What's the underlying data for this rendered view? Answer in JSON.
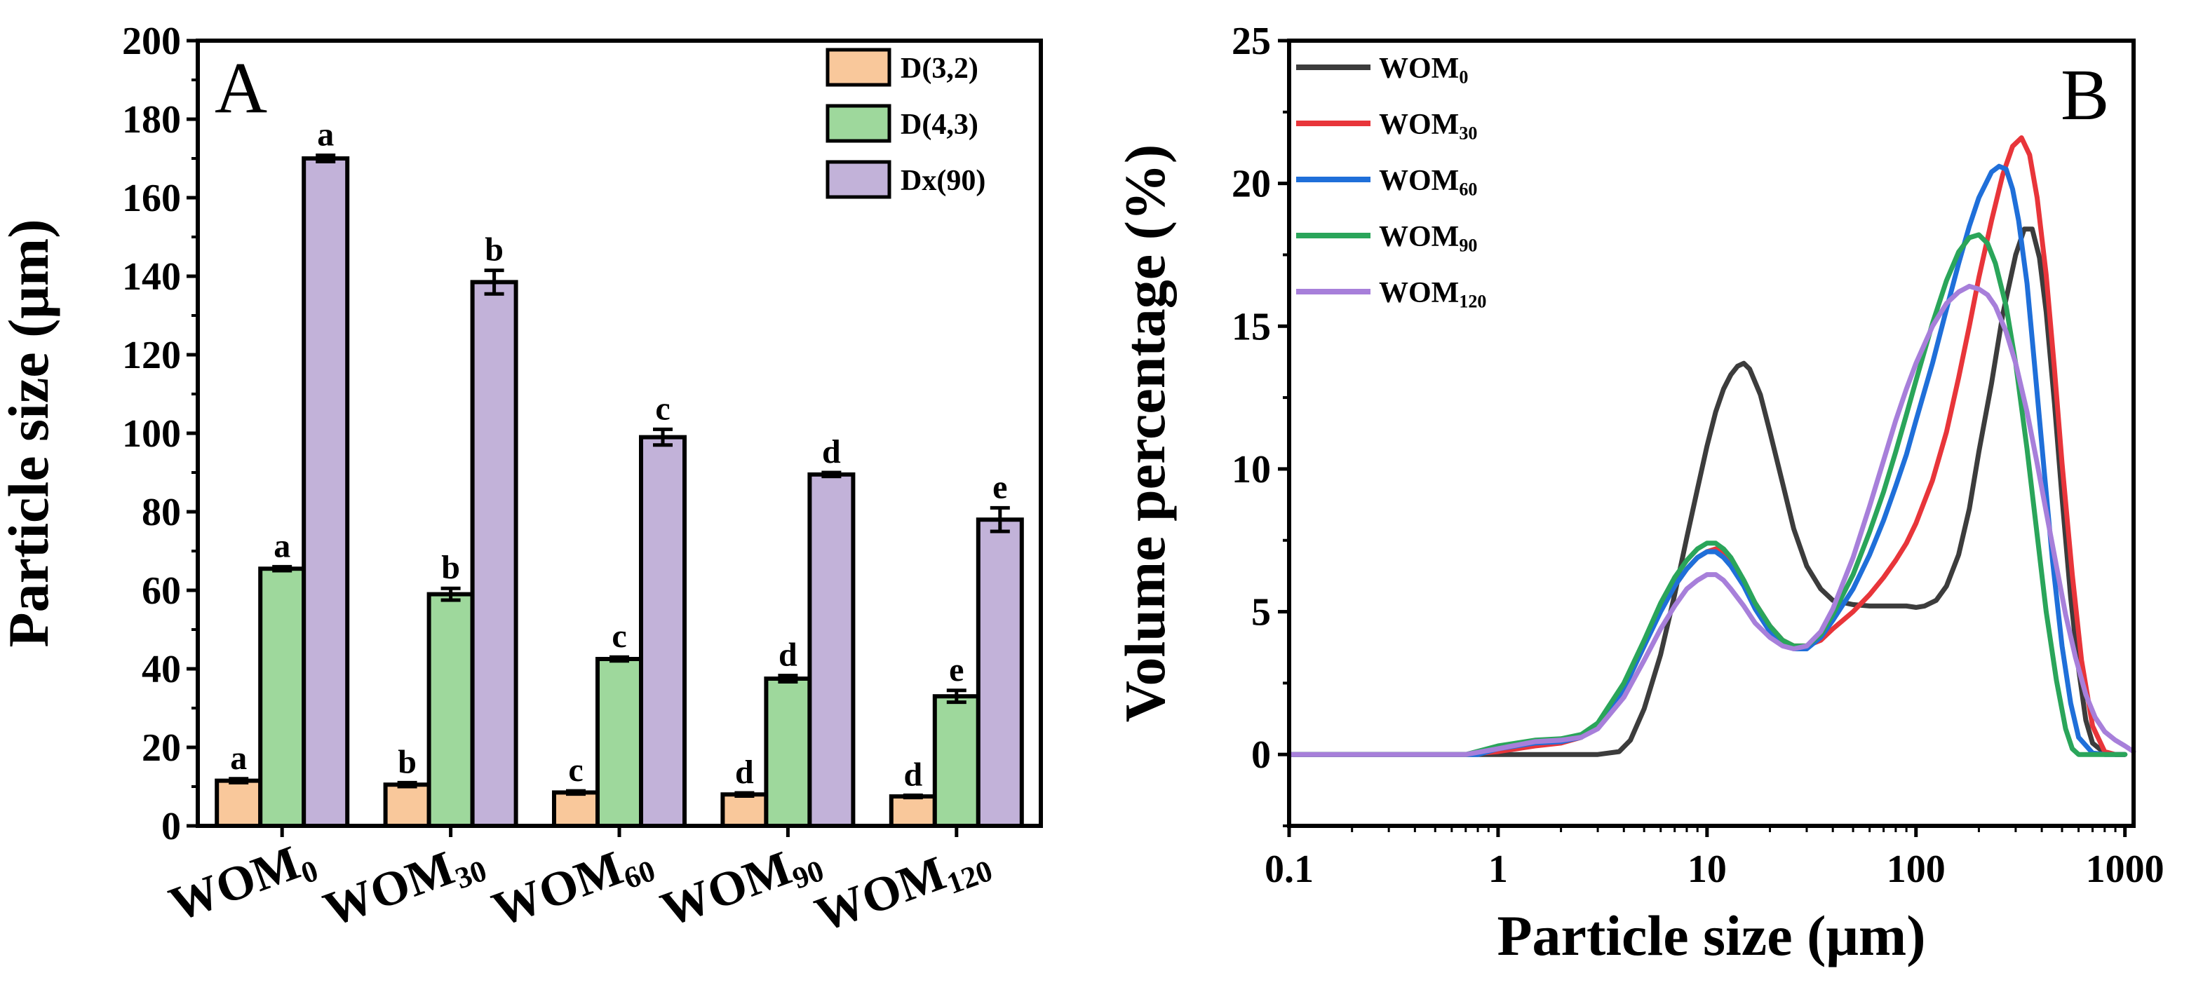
{
  "chart_data": [
    {
      "type": "bar",
      "panel_label": "A",
      "ylabel": "Particle size (μm)",
      "xlabel": "",
      "ylim": [
        0,
        200
      ],
      "yticks": [
        0,
        20,
        40,
        60,
        80,
        100,
        120,
        140,
        160,
        180,
        200
      ],
      "legend_position": "top-right",
      "categories": [
        {
          "base": "WOM",
          "sub": "0"
        },
        {
          "base": "WOM",
          "sub": "30"
        },
        {
          "base": "WOM",
          "sub": "60"
        },
        {
          "base": "WOM",
          "sub": "90"
        },
        {
          "base": "WOM",
          "sub": "120"
        }
      ],
      "series": [
        {
          "name": "D(3,2)",
          "color": "#F9C89B",
          "values": [
            11.5,
            10.5,
            8.5,
            8.0,
            7.5
          ],
          "errors": [
            0.5,
            0.5,
            0.4,
            0.4,
            0.3
          ],
          "letters": [
            "a",
            "b",
            "c",
            "d",
            "d"
          ]
        },
        {
          "name": "D(4,3)",
          "color": "#9ED89C",
          "values": [
            65.5,
            59.0,
            42.5,
            37.5,
            33.0
          ],
          "errors": [
            0.5,
            1.5,
            0.5,
            0.8,
            1.5
          ],
          "letters": [
            "a",
            "b",
            "c",
            "d",
            "e"
          ]
        },
        {
          "name": "Dx(90)",
          "color": "#C2B2D9",
          "values": [
            170.0,
            138.5,
            99.0,
            89.5,
            78.0
          ],
          "errors": [
            0.8,
            3.0,
            2.0,
            0.5,
            3.0
          ],
          "letters": [
            "a",
            "b",
            "c",
            "d",
            "e"
          ]
        }
      ]
    },
    {
      "type": "line",
      "panel_label": "B",
      "xlabel": "Particle size (μm)",
      "ylabel": "Volume percentage (%)",
      "xscale": "log",
      "xlim": [
        0.1,
        1100
      ],
      "ylim": [
        -2.5,
        25
      ],
      "xticks": [
        {
          "value": 0.1,
          "label": "0.1"
        },
        {
          "value": 1,
          "label": "1"
        },
        {
          "value": 10,
          "label": "10"
        },
        {
          "value": 100,
          "label": "100"
        },
        {
          "value": 1000,
          "label": "1000"
        }
      ],
      "yticks": [
        0,
        5,
        10,
        15,
        20,
        25
      ],
      "legend_position": "top-left",
      "series": [
        {
          "base": "WOM",
          "sub": "0",
          "color": "#3C3C3C",
          "x": [
            0.1,
            1,
            3,
            3.8,
            4.3,
            5,
            6,
            7,
            8,
            9,
            10,
            11,
            12,
            13,
            14,
            15,
            16,
            18,
            20,
            23,
            26,
            30,
            35,
            40,
            50,
            60,
            70,
            80,
            90,
            100,
            110,
            125,
            140,
            160,
            180,
            200,
            230,
            260,
            300,
            330,
            360,
            390,
            420,
            460,
            500,
            550,
            600,
            650,
            700,
            800,
            900,
            1000
          ],
          "y": [
            0,
            0,
            0,
            0.1,
            0.5,
            1.6,
            3.5,
            5.6,
            7.6,
            9.3,
            10.8,
            12.0,
            12.8,
            13.3,
            13.6,
            13.7,
            13.5,
            12.6,
            11.3,
            9.5,
            7.9,
            6.6,
            5.8,
            5.4,
            5.25,
            5.2,
            5.2,
            5.2,
            5.2,
            5.15,
            5.2,
            5.4,
            5.9,
            7.0,
            8.6,
            10.6,
            13.0,
            15.4,
            17.5,
            18.4,
            18.4,
            17.4,
            15.5,
            12.3,
            9.0,
            5.5,
            3.0,
            1.2,
            0.4,
            0.05,
            0,
            0
          ]
        },
        {
          "base": "WOM",
          "sub": "30",
          "color": "#E8353A",
          "x": [
            0.1,
            0.7,
            1,
            1.5,
            2,
            2.5,
            3,
            4,
            5,
            6,
            7,
            8,
            9,
            10,
            11,
            12,
            13,
            15,
            17,
            20,
            23,
            26,
            30,
            35,
            40,
            50,
            60,
            70,
            80,
            90,
            100,
            120,
            140,
            160,
            180,
            200,
            230,
            260,
            290,
            320,
            350,
            380,
            420,
            460,
            500,
            560,
            620,
            700,
            800,
            900,
            1000
          ],
          "y": [
            0,
            0,
            0.1,
            0.3,
            0.4,
            0.6,
            1.0,
            2.3,
            3.8,
            5.1,
            5.9,
            6.5,
            6.9,
            7.1,
            7.2,
            7.0,
            6.7,
            6.0,
            5.3,
            4.5,
            4.0,
            3.8,
            3.8,
            4.0,
            4.4,
            5.0,
            5.6,
            6.2,
            6.8,
            7.4,
            8.1,
            9.6,
            11.3,
            13.2,
            15.0,
            16.7,
            18.7,
            20.3,
            21.3,
            21.6,
            21.0,
            19.5,
            16.8,
            13.5,
            10.2,
            6.3,
            3.3,
            1.0,
            0.1,
            0,
            0
          ]
        },
        {
          "base": "WOM",
          "sub": "60",
          "color": "#1F6FD9",
          "x": [
            0.1,
            0.8,
            1,
            1.5,
            2,
            2.5,
            3,
            4,
            5,
            6,
            7,
            8,
            9,
            10,
            11,
            12,
            13,
            15,
            17,
            20,
            23,
            26,
            30,
            35,
            40,
            50,
            60,
            70,
            80,
            90,
            100,
            120,
            140,
            160,
            180,
            200,
            230,
            250,
            270,
            290,
            310,
            340,
            370,
            410,
            450,
            500,
            550,
            600,
            700,
            800,
            1000
          ],
          "y": [
            0,
            0,
            0.2,
            0.4,
            0.45,
            0.6,
            1.0,
            2.3,
            3.8,
            5.0,
            5.9,
            6.5,
            6.9,
            7.1,
            7.1,
            6.9,
            6.6,
            5.9,
            5.1,
            4.3,
            3.9,
            3.7,
            3.7,
            4.1,
            4.7,
            5.8,
            7.0,
            8.2,
            9.4,
            10.5,
            11.7,
            13.7,
            15.6,
            17.2,
            18.5,
            19.5,
            20.4,
            20.6,
            20.5,
            19.8,
            18.7,
            16.5,
            13.6,
            10.0,
            6.8,
            3.8,
            1.8,
            0.6,
            0.05,
            0,
            0
          ]
        },
        {
          "base": "WOM",
          "sub": "90",
          "color": "#2AA55A",
          "x": [
            0.1,
            0.7,
            1,
            1.5,
            2,
            2.5,
            3,
            4,
            5,
            6,
            7,
            8,
            9,
            10,
            11,
            12,
            13,
            15,
            17,
            20,
            23,
            26,
            30,
            35,
            40,
            50,
            60,
            70,
            80,
            90,
            100,
            120,
            140,
            160,
            180,
            200,
            220,
            240,
            270,
            300,
            340,
            380,
            420,
            470,
            520,
            560,
            600,
            650,
            700,
            800,
            1000
          ],
          "y": [
            0,
            0,
            0.3,
            0.5,
            0.55,
            0.7,
            1.1,
            2.5,
            4.0,
            5.3,
            6.2,
            6.8,
            7.2,
            7.4,
            7.4,
            7.2,
            6.9,
            6.1,
            5.3,
            4.5,
            4.0,
            3.8,
            3.8,
            4.2,
            4.9,
            6.3,
            7.8,
            9.2,
            10.6,
            11.9,
            13.1,
            15.1,
            16.6,
            17.6,
            18.1,
            18.2,
            17.9,
            17.2,
            15.7,
            13.7,
            10.7,
            7.7,
            5.0,
            2.6,
            0.9,
            0.2,
            0,
            0,
            0,
            0,
            0
          ]
        },
        {
          "base": "WOM",
          "sub": "120",
          "color": "#A77FDA",
          "x": [
            0.1,
            0.7,
            1,
            1.5,
            2,
            2.5,
            3,
            4,
            5,
            6,
            7,
            8,
            9,
            10,
            11,
            12,
            13,
            15,
            17,
            20,
            23,
            26,
            30,
            35,
            40,
            50,
            60,
            70,
            80,
            90,
            100,
            120,
            140,
            160,
            180,
            200,
            220,
            240,
            270,
            300,
            340,
            380,
            420,
            470,
            520,
            580,
            650,
            720,
            800,
            900,
            1000,
            1100
          ],
          "y": [
            0,
            0,
            0.2,
            0.45,
            0.5,
            0.6,
            0.9,
            2.0,
            3.3,
            4.4,
            5.2,
            5.8,
            6.1,
            6.3,
            6.3,
            6.1,
            5.8,
            5.2,
            4.6,
            4.1,
            3.8,
            3.7,
            3.8,
            4.3,
            5.1,
            6.9,
            8.7,
            10.3,
            11.7,
            12.8,
            13.7,
            15.0,
            15.8,
            16.2,
            16.4,
            16.3,
            16.1,
            15.7,
            14.8,
            13.7,
            12.0,
            10.2,
            8.5,
            6.6,
            4.9,
            3.4,
            2.1,
            1.3,
            0.8,
            0.5,
            0.3,
            0.1
          ]
        }
      ]
    }
  ]
}
